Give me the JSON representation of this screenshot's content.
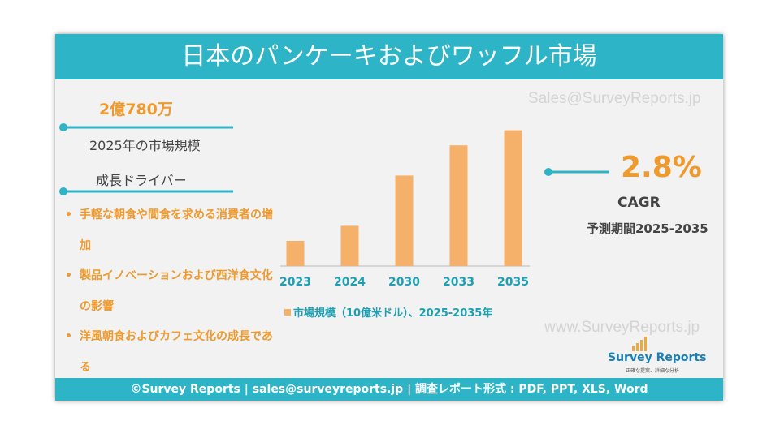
{
  "header": {
    "title": "日本のパンケーキおよびワッフル市場"
  },
  "market_size": {
    "value": "2億780万",
    "label": "2025年の市場規模"
  },
  "drivers": {
    "title": "成長ドライバー",
    "items": [
      "手軽な朝食や間食を求める消費者の増加",
      "製品イノベーションおよび西洋食文化の影響",
      "洋風朝食およびカフェ文化の成長である"
    ]
  },
  "cagr": {
    "value": "2.8%",
    "label": "CAGR",
    "period": "予測期間2025-2035"
  },
  "watermarks": [
    "Sales@SurveyReports.jp",
    "www.SurveyReports.jp"
  ],
  "logo": {
    "name": "Survey Reports",
    "tagline": "正確な提案、詳細な分析"
  },
  "footer": {
    "text": "©Survey Reports | sales@surveyreports.jp |  調査レポート形式 : PDF, PPT, XLS, Word"
  },
  "chart_data": {
    "type": "bar",
    "categories": [
      "2023",
      "2024",
      "2030",
      "2033",
      "2035"
    ],
    "series": [
      {
        "name": "市場規模（10億米ドル）、2025-2035年",
        "color": "#f5b06a",
        "values": [
          0.05,
          0.08,
          0.18,
          0.24,
          0.27
        ]
      }
    ],
    "ylim": [
      0,
      0.3
    ]
  }
}
